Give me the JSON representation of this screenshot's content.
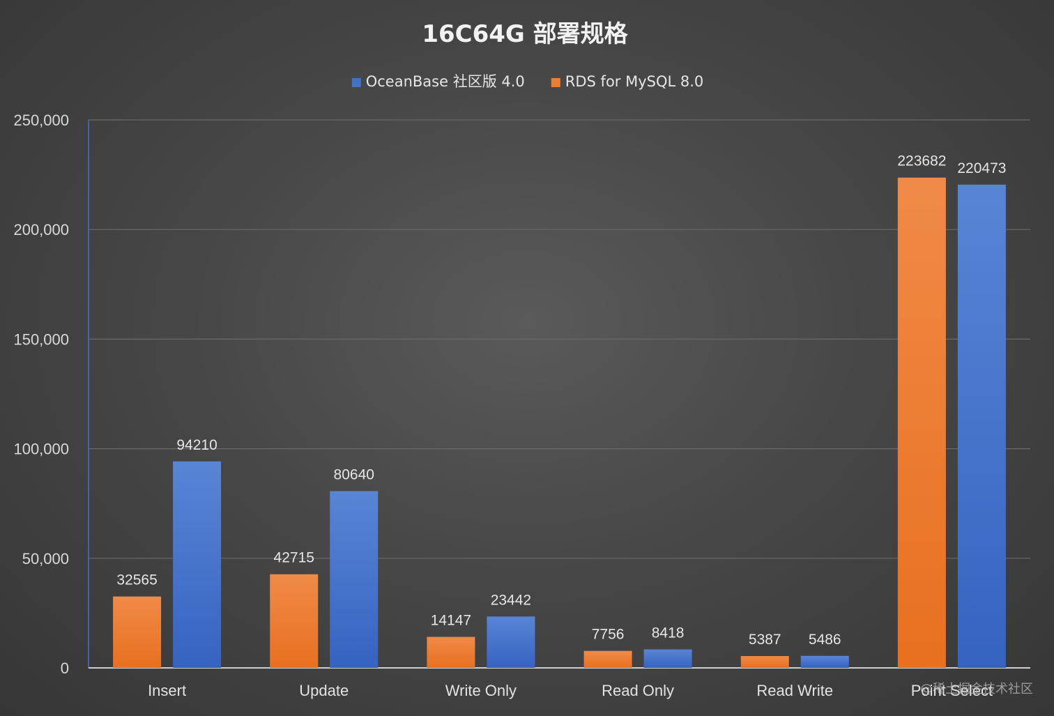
{
  "chart_data": {
    "type": "bar",
    "title": "16C64G 部署规格",
    "categories": [
      "Insert",
      "Update",
      "Write Only",
      "Read Only",
      "Read Write",
      "Point Select"
    ],
    "series": [
      {
        "name": "RDS for MySQL 8.0",
        "color": "#ED7D31",
        "values": [
          32565,
          42715,
          14147,
          7756,
          5387,
          223682
        ],
        "labels": [
          "32565",
          "42715",
          "14147",
          "7756",
          "5387",
          "223682"
        ]
      },
      {
        "name": "OceanBase 社区版 4.0",
        "color": "#4472C4",
        "values": [
          94210,
          80640,
          23442,
          8418,
          5486,
          220473
        ],
        "labels": [
          "94210",
          "80640",
          "23442",
          "8418",
          "5486",
          "220473"
        ]
      }
    ],
    "legend_order": [
      1,
      0
    ],
    "legend_position": "top",
    "y_ticks": [
      0,
      50000,
      100000,
      150000,
      200000,
      250000
    ],
    "y_tick_labels": [
      "0",
      "50,000",
      "100,000",
      "150,000",
      "200,000",
      "250,000"
    ],
    "ylim": [
      0,
      250000
    ],
    "xlabel": "",
    "ylabel": "",
    "grid": true
  },
  "watermark": "@稀土掘金技术社区"
}
